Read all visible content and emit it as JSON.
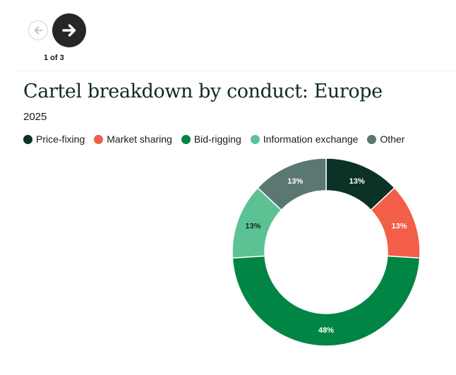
{
  "nav": {
    "counter": "1 of 3",
    "prev_icon": "arrow-left-icon",
    "next_icon": "arrow-right-icon"
  },
  "chart_data": {
    "type": "pie",
    "title": "Cartel breakdown by conduct: Europe",
    "subtitle": "2025",
    "donut": true,
    "legend_position": "top-left",
    "slices": [
      {
        "name": "Price-fixing",
        "value": 13,
        "label": "13%",
        "color": "#0c3127",
        "label_color": "#ffffff"
      },
      {
        "name": "Market sharing",
        "value": 13,
        "label": "13%",
        "color": "#f25e47",
        "label_color": "#ffffff"
      },
      {
        "name": "Bid-rigging",
        "value": 48,
        "label": "48%",
        "color": "#008545",
        "label_color": "#ffffff"
      },
      {
        "name": "Information exchange",
        "value": 13,
        "label": "13%",
        "color": "#5cc294",
        "label_color": "#0f2a22"
      },
      {
        "name": "Other",
        "value": 13,
        "label": "13%",
        "color": "#5a7871",
        "label_color": "#ffffff"
      }
    ]
  }
}
